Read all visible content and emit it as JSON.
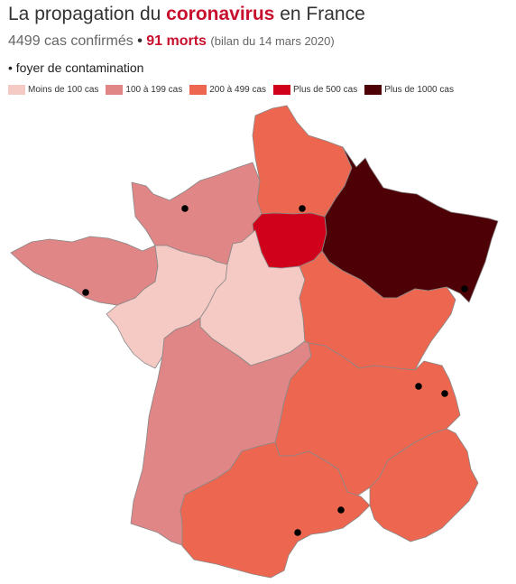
{
  "title": {
    "prefix": "La propagation du ",
    "highlight": "coronavirus",
    "suffix": " en France"
  },
  "subtitle": {
    "cases": "4499 cas confirmés",
    "separator": "•",
    "deaths": "91 morts",
    "note": "(bilan du 14 mars 2020)"
  },
  "foyer_label": "• foyer de contamination",
  "legend": [
    {
      "label": "Moins de 100 cas",
      "color": "#f5c9c4"
    },
    {
      "label": "100 à 199 cas",
      "color": "#e08686"
    },
    {
      "label": "200 à 499 cas",
      "color": "#ed6650"
    },
    {
      "label": "Plus de 500 cas",
      "color": "#d0021b"
    },
    {
      "label": "Plus de 1000 cas",
      "color": "#4d0005"
    }
  ],
  "regions": [
    {
      "name": "Hauts-de-France",
      "class": 2
    },
    {
      "name": "Normandie",
      "class": 1
    },
    {
      "name": "Île-de-France",
      "class": 3
    },
    {
      "name": "Grand Est",
      "class": 4
    },
    {
      "name": "Bretagne",
      "class": 1
    },
    {
      "name": "Pays de la Loire",
      "class": 0
    },
    {
      "name": "Centre-Val de Loire",
      "class": 0
    },
    {
      "name": "Bourgogne-Franche-Comté",
      "class": 2
    },
    {
      "name": "Nouvelle-Aquitaine",
      "class": 1
    },
    {
      "name": "Auvergne-Rhône-Alpes",
      "class": 2
    },
    {
      "name": "Occitanie",
      "class": 2
    },
    {
      "name": "Provence-Alpes-Côte d'Azur",
      "class": 2
    }
  ],
  "foyers": [
    "Creil",
    "Haute-Savoie",
    "Mulhouse",
    "Morbihan",
    "Calvados",
    "Montpellier",
    "Isère",
    "Gard"
  ]
}
